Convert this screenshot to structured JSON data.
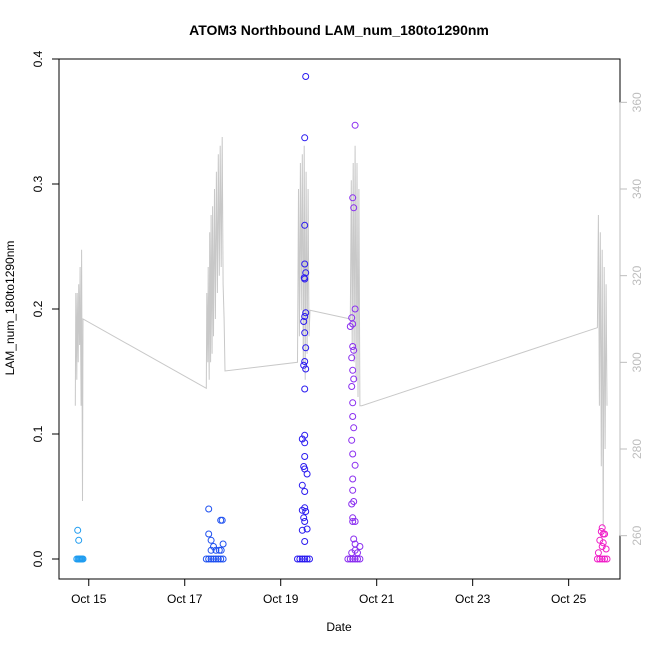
{
  "chart_data": {
    "type": "scatter",
    "title": "ATOM3 Northbound LAM_num_180to1290nm",
    "xlabel": "Date",
    "ylabel": "LAM_num_180to1290nm",
    "x_ticks": [
      "Oct 15",
      "Oct 17",
      "Oct 19",
      "Oct 21",
      "Oct 23",
      "Oct 25"
    ],
    "x_tick_days": [
      15,
      17,
      19,
      21,
      23,
      25
    ],
    "xlim": [
      14.38,
      26.07
    ],
    "y_ticks": [
      "0.0",
      "0.1",
      "0.2",
      "0.3",
      "0.4"
    ],
    "y_tick_values": [
      0.0,
      0.1,
      0.2,
      0.3,
      0.4
    ],
    "ylim": [
      -0.016,
      0.4
    ],
    "y2_ticks": [
      "260",
      "280",
      "300",
      "320",
      "340",
      "360"
    ],
    "y2_tick_values": [
      260,
      280,
      300,
      320,
      340,
      360
    ],
    "y2lim": [
      250,
      370
    ],
    "secondary_line_color": "#c8c8c8",
    "grid": false,
    "series": [
      {
        "color": "#1e9cf0",
        "x": [
          14.75,
          14.78,
          14.8,
          14.82,
          14.84,
          14.86,
          14.88,
          14.77,
          14.79
        ],
        "y": [
          0,
          0,
          0,
          0,
          0,
          0,
          0,
          0.023,
          0.015
        ]
      },
      {
        "color": "#1e50f0",
        "x": [
          17.45,
          17.5,
          17.55,
          17.6,
          17.65,
          17.7,
          17.75,
          17.8,
          17.5,
          17.5,
          17.55,
          17.6,
          17.55,
          17.65,
          17.72,
          17.76,
          17.8,
          17.78,
          17.75
        ],
        "y": [
          0,
          0,
          0,
          0,
          0,
          0,
          0,
          0,
          0.04,
          0.02,
          0.015,
          0.01,
          0.007,
          0.007,
          0.007,
          0.007,
          0.012,
          0.031,
          0.031
        ]
      },
      {
        "color": "#2a1af0",
        "x": [
          19.35,
          19.4,
          19.45,
          19.5,
          19.55,
          19.6,
          19.52,
          19.5,
          19.5,
          19.5,
          19.52,
          19.49,
          19.5,
          19.52,
          19.5,
          19.48,
          19.5,
          19.52,
          19.5,
          19.48,
          19.52,
          19.5,
          19.5,
          19.45,
          19.5,
          19.5,
          19.48,
          19.5,
          19.55,
          19.45,
          19.5,
          19.5,
          19.45,
          19.52,
          19.48,
          19.5,
          19.55,
          19.45,
          19.5
        ],
        "y": [
          0,
          0,
          0,
          0,
          0,
          0,
          0.386,
          0.337,
          0.267,
          0.236,
          0.229,
          0.225,
          0.224,
          0.197,
          0.194,
          0.19,
          0.181,
          0.169,
          0.158,
          0.155,
          0.152,
          0.136,
          0.099,
          0.096,
          0.093,
          0.082,
          0.074,
          0.072,
          0.068,
          0.059,
          0.054,
          0.041,
          0.039,
          0.038,
          0.033,
          0.03,
          0.024,
          0.023,
          0.014
        ]
      },
      {
        "color": "#8a2ef0",
        "x": [
          20.4,
          20.45,
          20.5,
          20.55,
          20.6,
          20.65,
          20.55,
          20.5,
          20.52,
          20.55,
          20.48,
          20.5,
          20.45,
          20.5,
          20.52,
          20.48,
          20.5,
          20.52,
          20.48,
          20.5,
          20.5,
          20.52,
          20.48,
          20.5,
          20.55,
          20.5,
          20.5,
          20.52,
          20.48,
          20.5,
          20.55,
          20.5,
          20.52,
          20.55,
          20.55,
          20.6,
          20.65,
          20.48
        ],
        "y": [
          0,
          0,
          0,
          0,
          0,
          0,
          0.347,
          0.289,
          0.281,
          0.2,
          0.193,
          0.188,
          0.186,
          0.17,
          0.167,
          0.161,
          0.151,
          0.144,
          0.138,
          0.125,
          0.114,
          0.105,
          0.095,
          0.084,
          0.075,
          0.064,
          0.055,
          0.046,
          0.044,
          0.033,
          0.03,
          0.03,
          0.016,
          0.012,
          0.007,
          0.005,
          0.01,
          0.005
        ]
      },
      {
        "color": "#f01ec8",
        "x": [
          25.6,
          25.65,
          25.7,
          25.75,
          25.8,
          25.7,
          25.68,
          25.72,
          25.75,
          25.65,
          25.72,
          25.7,
          25.78,
          25.62
        ],
        "y": [
          0,
          0,
          0,
          0,
          0,
          0.025,
          0.022,
          0.02,
          0.02,
          0.015,
          0.013,
          0.01,
          0.008,
          0.005
        ]
      }
    ],
    "secondary_line": {
      "x": [
        14.72,
        14.73,
        14.75,
        14.76,
        14.78,
        14.79,
        14.81,
        14.82,
        14.84,
        14.85,
        14.87,
        14.88,
        17.45,
        17.46,
        17.48,
        17.49,
        17.51,
        17.52,
        17.54,
        17.55,
        17.57,
        17.58,
        17.6,
        17.62,
        17.64,
        17.66,
        17.68,
        17.7,
        17.72,
        17.74,
        17.76,
        17.78,
        17.8,
        17.82,
        17.84,
        19.35,
        19.37,
        19.39,
        19.41,
        19.43,
        19.45,
        19.47,
        19.49,
        19.51,
        19.53,
        19.55,
        19.57,
        19.59,
        19.61,
        20.45,
        20.47,
        20.49,
        20.51,
        20.53,
        20.55,
        20.57,
        20.59,
        20.61,
        20.63,
        20.65,
        20.67,
        20.69,
        25.6,
        25.62,
        25.64,
        25.66,
        25.68,
        25.7,
        25.72,
        25.74,
        25.76,
        25.78,
        25.8
      ],
      "y": [
        290,
        316,
        296,
        316,
        300,
        318,
        304,
        322,
        290,
        326,
        268,
        310,
        294,
        316,
        300,
        322,
        296,
        330,
        300,
        334,
        302,
        336,
        306,
        340,
        310,
        344,
        316,
        348,
        320,
        350,
        322,
        352,
        318,
        310,
        298,
        300,
        340,
        306,
        346,
        312,
        348,
        300,
        350,
        296,
        344,
        302,
        340,
        306,
        312,
        310,
        342,
        304,
        346,
        300,
        350,
        296,
        346,
        292,
        340,
        290,
        290,
        290,
        308,
        334,
        290,
        330,
        276,
        326,
        262,
        322,
        280,
        318,
        290
      ]
    }
  }
}
